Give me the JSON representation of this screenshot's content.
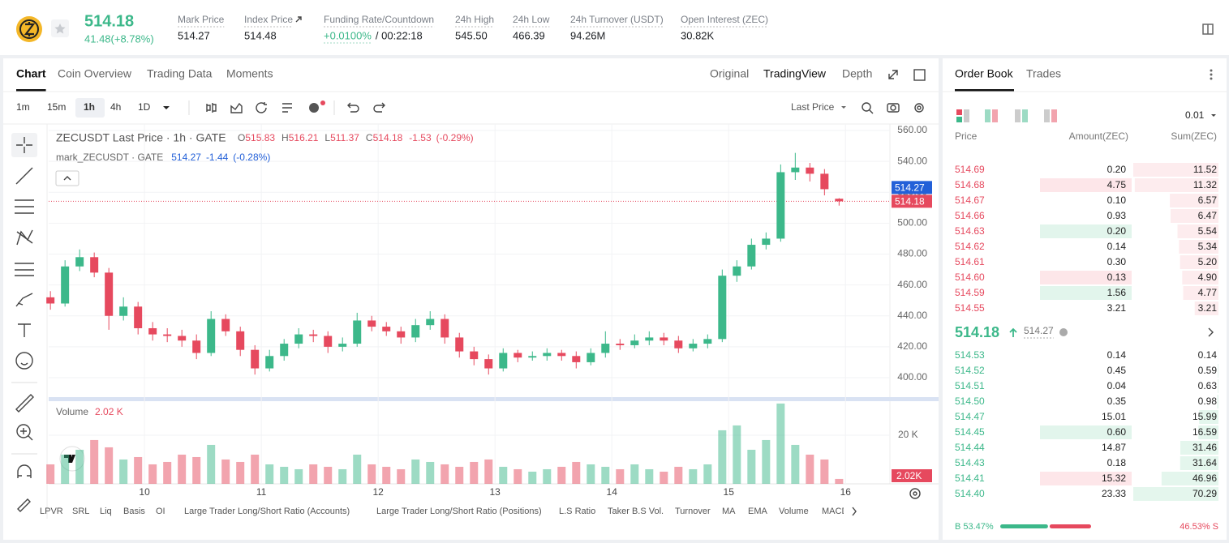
{
  "header": {
    "price": "514.18",
    "change": "41.48(+8.78%)",
    "stats": [
      {
        "label": "Mark Price",
        "value": "514.27"
      },
      {
        "label": "Index Price",
        "value": "514.48"
      },
      {
        "label": "Funding Rate/Countdown",
        "value": "+0.0100%",
        "extra": "/ 00:22:18"
      },
      {
        "label": "24h High",
        "value": "545.50"
      },
      {
        "label": "24h Low",
        "value": "466.39"
      },
      {
        "label": "24h Turnover (USDT)",
        "value": "94.26M"
      },
      {
        "label": "Open Interest (ZEC)",
        "value": "30.82K"
      }
    ]
  },
  "chart_panel": {
    "tabs": [
      "Chart",
      "Coin Overview",
      "Trading Data",
      "Moments"
    ],
    "view_tabs": [
      "Original",
      "TradingView",
      "Depth"
    ],
    "intervals": [
      "1m",
      "15m",
      "1h",
      "4h",
      "1D"
    ],
    "selected_interval": 2,
    "price_type": "Last Price",
    "indicators": [
      "LPVR",
      "SRL",
      "Liq",
      "Basis",
      "OI",
      "Large Trader Long/Short Ratio (Accounts)",
      "Large Trader Long/Short Ratio (Positions)",
      "L.S Ratio",
      "Taker B.S Vol.",
      "Turnover",
      "MA",
      "EMA",
      "Volume",
      "MACD"
    ]
  },
  "chart_data": {
    "type": "candlestick",
    "title": "ZECUSDT Last Price · 1h · GATE",
    "ohlc": [
      {
        "label": "O",
        "value": "515.83"
      },
      {
        "label": "H",
        "value": "516.21"
      },
      {
        "label": "L",
        "value": "511.37"
      },
      {
        "label": "C",
        "value": "514.18"
      }
    ],
    "change": "-1.53",
    "change_pct": "(-0.29%)",
    "mark_title": "mark_ZECUSDT · GATE",
    "mark_price": "514.27",
    "mark_change": "-1.44",
    "mark_change_pct": "(-0.28%)",
    "x": [
      9.195,
      9.32,
      9.445,
      9.57,
      9.695,
      9.82,
      9.945,
      10.07,
      10.195,
      10.32,
      10.445,
      10.57,
      10.695,
      10.82,
      10.945,
      11.07,
      11.195,
      11.32,
      11.445,
      11.57,
      11.695,
      11.82,
      11.945,
      12.07,
      12.195,
      12.32,
      12.445,
      12.57,
      12.695,
      12.82,
      12.945,
      13.07,
      13.195,
      13.32,
      13.445,
      13.57,
      13.695,
      13.82,
      13.945,
      14.07,
      14.195,
      14.32,
      14.445,
      14.57,
      14.695,
      14.82,
      14.945,
      15.07,
      15.195,
      15.32,
      15.445,
      15.57,
      15.695,
      15.82,
      15.945
    ],
    "open": [
      452,
      448,
      472,
      478,
      468,
      440,
      446,
      432,
      428,
      427,
      424,
      416,
      438,
      430,
      418,
      406,
      414,
      422,
      428,
      427,
      420,
      422,
      437,
      433,
      430,
      426,
      434,
      438,
      426,
      417,
      412,
      406,
      416,
      413,
      414,
      416,
      414,
      410,
      416,
      422,
      421,
      424,
      426,
      424,
      419,
      422,
      425,
      466,
      472,
      486,
      490,
      533,
      536,
      532,
      515.83
    ],
    "high": [
      456,
      476,
      483,
      481,
      471,
      452,
      449,
      436,
      432,
      431,
      428,
      443,
      441,
      433,
      421,
      418,
      425,
      432,
      431,
      430,
      426,
      442,
      440,
      436,
      433,
      438,
      443,
      441,
      429,
      420,
      415,
      419,
      418,
      417,
      419,
      418,
      417,
      419,
      430,
      425,
      428,
      430,
      429,
      427,
      425,
      428,
      470,
      476,
      490,
      494,
      538,
      545.5,
      539,
      535,
      516.21
    ],
    "low": [
      444,
      446,
      469,
      465,
      431,
      437,
      428,
      424,
      423,
      420,
      412,
      414,
      427,
      414,
      402,
      404,
      411,
      419,
      423,
      416,
      417,
      420,
      430,
      427,
      422,
      423,
      431,
      422,
      413,
      408,
      402,
      404,
      410,
      411,
      411,
      411,
      406,
      408,
      413,
      418,
      419,
      421,
      421,
      416,
      417,
      419,
      423,
      462,
      470,
      483,
      488,
      528,
      527,
      518,
      511.37
    ],
    "close": [
      448,
      472,
      478,
      468,
      440,
      446,
      432,
      428,
      427,
      424,
      416,
      438,
      430,
      418,
      406,
      414,
      422,
      428,
      427,
      420,
      422,
      437,
      433,
      430,
      426,
      434,
      438,
      426,
      417,
      412,
      406,
      416,
      413,
      414,
      416,
      414,
      410,
      416,
      422,
      421,
      424,
      426,
      424,
      419,
      422,
      425,
      466,
      472,
      486,
      490,
      533,
      536,
      532,
      522,
      514.18
    ],
    "volume": [
      8,
      12,
      14,
      18,
      15,
      10,
      11,
      8,
      9,
      12,
      11,
      16,
      10,
      9,
      12,
      8,
      7,
      6,
      8,
      7,
      6,
      12,
      8,
      7,
      6,
      10,
      9,
      8,
      7,
      9,
      10,
      7,
      6,
      5,
      6,
      7,
      9,
      8,
      7,
      6,
      8,
      6,
      5,
      7,
      6,
      8,
      22,
      24,
      14,
      18,
      33,
      16,
      12,
      10,
      2.02
    ],
    "up_color": "#3cb88a",
    "down_color": "#e6495e",
    "xlim": [
      9.18,
      16.38
    ],
    "xticks": [
      10,
      11,
      12,
      13,
      14,
      15,
      16
    ],
    "ylim": [
      387.4,
      564.2
    ],
    "yticks": [
      {
        "value": 400,
        "label": "400.00"
      },
      {
        "value": 420,
        "label": "420.00"
      },
      {
        "value": 440,
        "label": "440.00"
      },
      {
        "value": 460,
        "label": "460.00"
      },
      {
        "value": 480,
        "label": "480.00"
      },
      {
        "value": 500,
        "label": "500.00"
      },
      {
        "value": 520,
        "label": "520.00"
      },
      {
        "value": 540,
        "label": "540.00"
      },
      {
        "value": 560,
        "label": "560.00"
      }
    ],
    "grid": true,
    "price_tags": [
      {
        "value": 514.27,
        "label": "514.27",
        "color": "#2360d8"
      },
      {
        "value": 514.18,
        "label": "514.18",
        "color": "#e6495e"
      }
    ],
    "volume_title": "Volume",
    "volume_label": "2.02 K",
    "vlim": [
      0,
      33.3
    ],
    "vticks": [
      {
        "value": 20,
        "label": "20 K"
      }
    ],
    "volume_tag": {
      "value": 2.02,
      "label": "2.02K"
    }
  },
  "order_book": {
    "tabs": [
      "Order Book",
      "Trades"
    ],
    "precision": "0.01",
    "columns": [
      "Price",
      "Amount(ZEC)",
      "Sum(ZEC)"
    ],
    "asks": [
      {
        "price": "514.69",
        "amount": "0.20",
        "sum": "11.52"
      },
      {
        "price": "514.68",
        "amount": "4.75",
        "sum": "11.32",
        "flash": "#fde6e9"
      },
      {
        "price": "514.67",
        "amount": "0.10",
        "sum": "6.57"
      },
      {
        "price": "514.66",
        "amount": "0.93",
        "sum": "6.47"
      },
      {
        "price": "514.63",
        "amount": "0.20",
        "sum": "5.54",
        "flash": "#e2f5ec"
      },
      {
        "price": "514.62",
        "amount": "0.14",
        "sum": "5.34"
      },
      {
        "price": "514.61",
        "amount": "0.30",
        "sum": "5.20"
      },
      {
        "price": "514.60",
        "amount": "0.13",
        "sum": "4.90",
        "flash": "#fde6e9"
      },
      {
        "price": "514.59",
        "amount": "1.56",
        "sum": "4.77",
        "flash": "#e2f5ec"
      },
      {
        "price": "514.55",
        "amount": "3.21",
        "sum": "3.21"
      }
    ],
    "last_price": "514.18",
    "mark_price": "514.27",
    "bids": [
      {
        "price": "514.53",
        "amount": "0.14",
        "sum": "0.14"
      },
      {
        "price": "514.52",
        "amount": "0.45",
        "sum": "0.59"
      },
      {
        "price": "514.51",
        "amount": "0.04",
        "sum": "0.63"
      },
      {
        "price": "514.50",
        "amount": "0.35",
        "sum": "0.98"
      },
      {
        "price": "514.47",
        "amount": "15.01",
        "sum": "15.99"
      },
      {
        "price": "514.45",
        "amount": "0.60",
        "sum": "16.59",
        "flash": "#e2f5ec"
      },
      {
        "price": "514.44",
        "amount": "14.87",
        "sum": "31.46"
      },
      {
        "price": "514.43",
        "amount": "0.18",
        "sum": "31.64"
      },
      {
        "price": "514.41",
        "amount": "15.32",
        "sum": "46.96",
        "flash": "#fde6e9"
      },
      {
        "price": "514.40",
        "amount": "23.33",
        "sum": "70.29"
      }
    ],
    "buy": 53.47,
    "buy_label": "B 53.47%",
    "sell": 46.53,
    "sell_label": "46.53% S"
  }
}
